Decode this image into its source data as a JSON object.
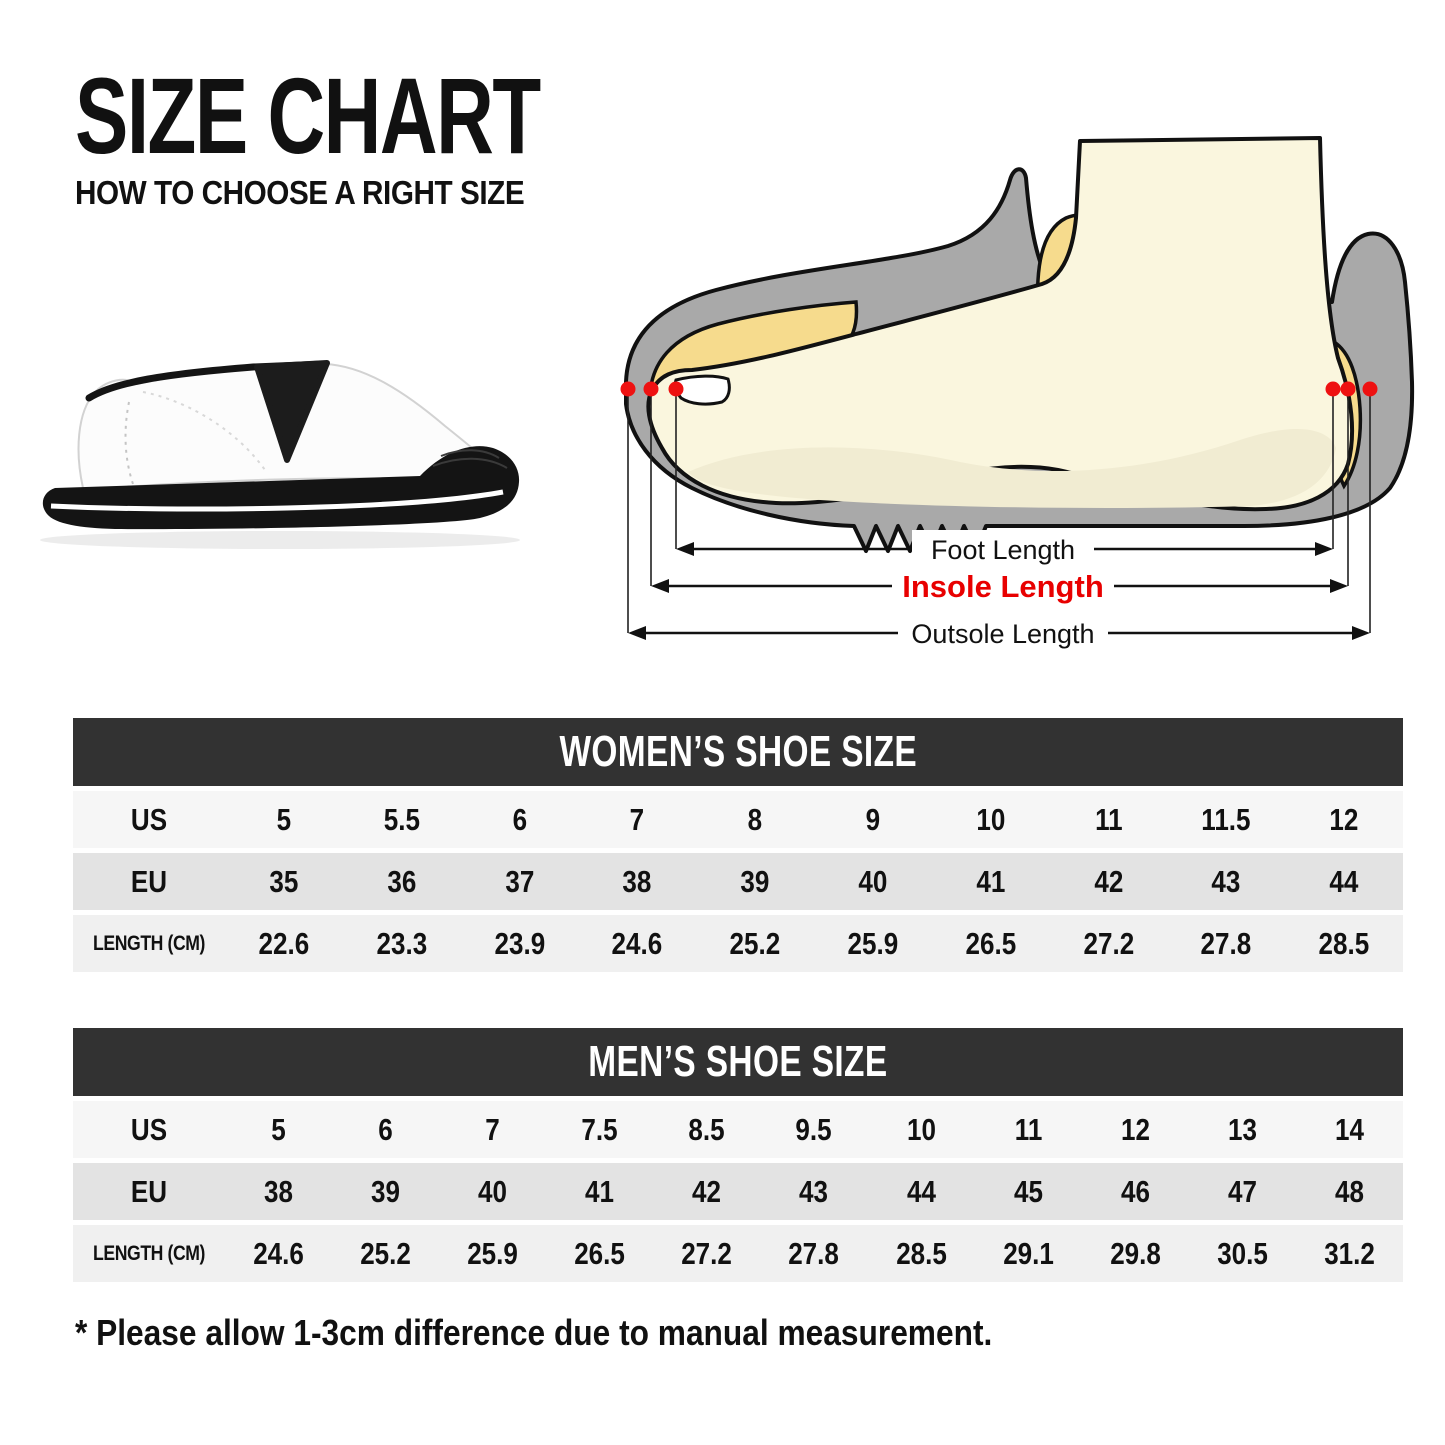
{
  "page": {
    "title": "SIZE CHART",
    "subtitle": "HOW TO CHOOSE A RIGHT SIZE",
    "note": "* Please allow 1-3cm difference due to manual measurement."
  },
  "diagram": {
    "labels": {
      "foot_length": "Foot Length",
      "insole_length": "Insole Length",
      "outsole_length": "Outsole Length"
    },
    "colors": {
      "foot": "#FAF6DE",
      "foot_shade": "#F1ECD2",
      "insole": "#F6DB8D",
      "shoe": "#A9A9A9",
      "outline": "#111111",
      "marker_dot": "#EE1111",
      "insole_label": "#E80000"
    }
  },
  "theme": {
    "header_bg": "#323232",
    "header_text": "#FFFFFF",
    "body_text": "#111111"
  },
  "tables": [
    {
      "title": "WOMEN’S SHOE SIZE",
      "rows": [
        {
          "label": "US",
          "bg": "#F6F6F6",
          "values": [
            "5",
            "5.5",
            "6",
            "7",
            "8",
            "9",
            "10",
            "11",
            "11.5",
            "12"
          ]
        },
        {
          "label": "EU",
          "bg": "#E3E3E3",
          "values": [
            "35",
            "36",
            "37",
            "38",
            "39",
            "40",
            "41",
            "42",
            "43",
            "44"
          ]
        },
        {
          "label": "LENGTH (CM)",
          "bg": "#F0F0F0",
          "values": [
            "22.6",
            "23.3",
            "23.9",
            "24.6",
            "25.2",
            "25.9",
            "26.5",
            "27.2",
            "27.8",
            "28.5"
          ]
        }
      ]
    },
    {
      "title": "MEN’S SHOE SIZE",
      "rows": [
        {
          "label": "US",
          "bg": "#F6F6F6",
          "values": [
            "5",
            "6",
            "7",
            "7.5",
            "8.5",
            "9.5",
            "10",
            "11",
            "12",
            "13",
            "14"
          ]
        },
        {
          "label": "EU",
          "bg": "#E3E3E3",
          "values": [
            "38",
            "39",
            "40",
            "41",
            "42",
            "43",
            "44",
            "45",
            "46",
            "47",
            "48"
          ]
        },
        {
          "label": "LENGTH (CM)",
          "bg": "#F0F0F0",
          "values": [
            "24.6",
            "25.2",
            "25.9",
            "26.5",
            "27.2",
            "27.8",
            "28.5",
            "29.1",
            "29.8",
            "30.5",
            "31.2"
          ]
        }
      ]
    }
  ]
}
